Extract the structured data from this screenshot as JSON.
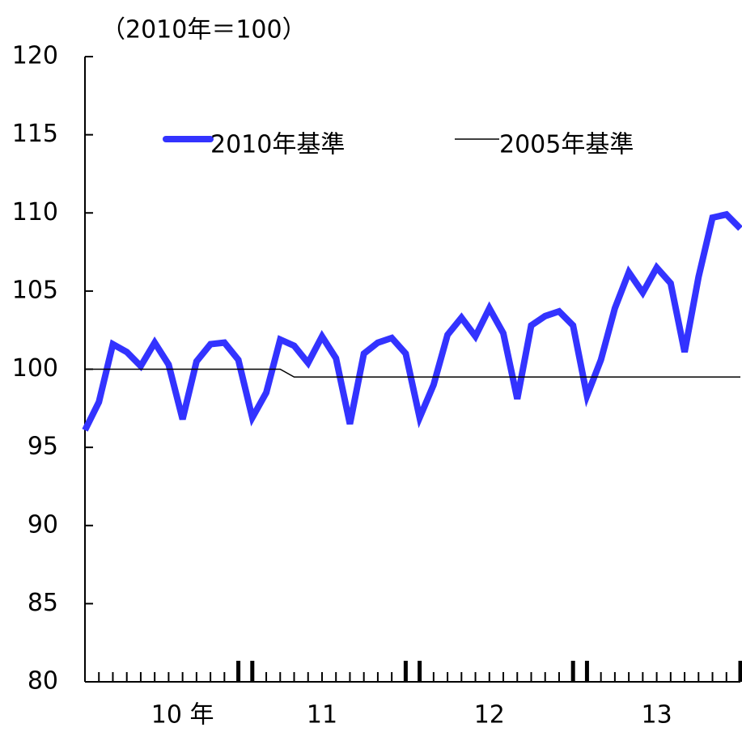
{
  "chart_data": {
    "type": "line",
    "y_label": "（2010年＝100）",
    "categories": [
      null,
      null,
      null,
      null,
      null,
      null,
      null,
      "10 年",
      null,
      null,
      null,
      null,
      null,
      null,
      null,
      null,
      null,
      "11",
      null,
      null,
      null,
      null,
      null,
      null,
      null,
      null,
      null,
      null,
      null,
      "12",
      null,
      null,
      null,
      null,
      null,
      null,
      null,
      null,
      null,
      null,
      null,
      "13",
      null,
      null,
      null,
      null,
      null,
      null
    ],
    "series": [
      {
        "name": "2010年基準",
        "color": "#3333ff",
        "width": 8,
        "values": [
          96.1,
          97.9,
          101.6,
          101.1,
          100.2,
          101.7,
          100.3,
          96.8,
          100.5,
          101.6,
          101.7,
          100.6,
          96.9,
          98.5,
          101.9,
          101.5,
          100.4,
          102.1,
          100.7,
          96.5,
          101,
          101.7,
          102,
          101,
          96.9,
          99,
          102.2,
          103.3,
          102.1,
          103.9,
          102.3,
          98.1,
          102.8,
          103.4,
          103.7,
          102.8,
          98.3,
          100.6,
          103.9,
          106.2,
          104.9,
          106.5,
          105.5,
          101.1,
          105.9,
          109.7,
          109.9,
          109
        ]
      },
      {
        "name": "2005年基準",
        "color": "#000000",
        "width": 1.5,
        "values": [
          100,
          100,
          100,
          100,
          100,
          100,
          100,
          100,
          100,
          100,
          100,
          100,
          100,
          100,
          100,
          99.5,
          99.5,
          99.5,
          99.5,
          99.5,
          99.5,
          99.5,
          99.5,
          99.5,
          99.5,
          99.5,
          99.5,
          99.5,
          99.5,
          99.5,
          99.5,
          99.5,
          99.5,
          99.5,
          99.5,
          99.5,
          99.5,
          99.5,
          99.5,
          99.5,
          99.5,
          99.5,
          99.5,
          99.5,
          99.5,
          99.5,
          99.5,
          99.5
        ]
      }
    ],
    "ylim": [
      80,
      120
    ],
    "yticks": [
      80,
      85,
      90,
      95,
      100,
      105,
      110,
      115,
      120
    ],
    "grid": false
  }
}
